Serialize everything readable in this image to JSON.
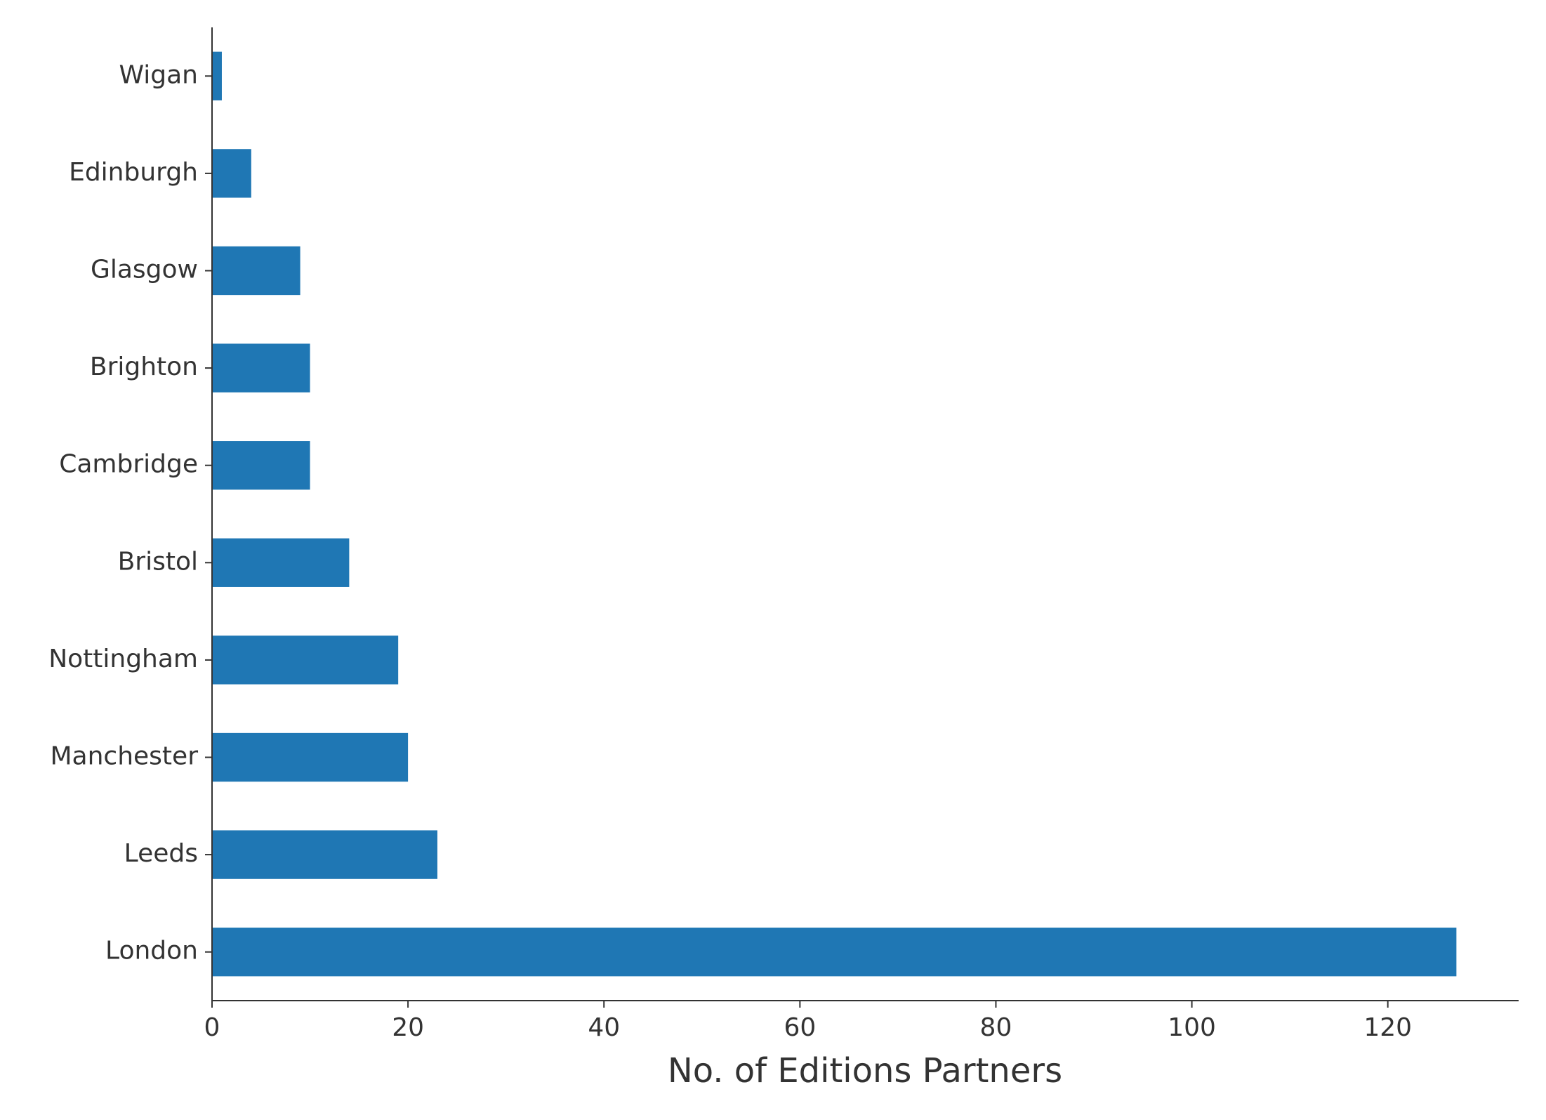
{
  "chart_data": {
    "type": "barh",
    "xlabel": "No. of Editions Partners",
    "categories": [
      "London",
      "Leeds",
      "Manchester",
      "Nottingham",
      "Bristol",
      "Cambridge",
      "Brighton",
      "Glasgow",
      "Edinburgh",
      "Wigan"
    ],
    "values": [
      127,
      23,
      20,
      19,
      14,
      10,
      10,
      9,
      4,
      1
    ],
    "color": "#1f77b4",
    "xlim": [
      0,
      133.35
    ],
    "xticks": [
      0,
      20,
      40,
      60,
      80,
      100,
      120
    ],
    "grid": false
  }
}
